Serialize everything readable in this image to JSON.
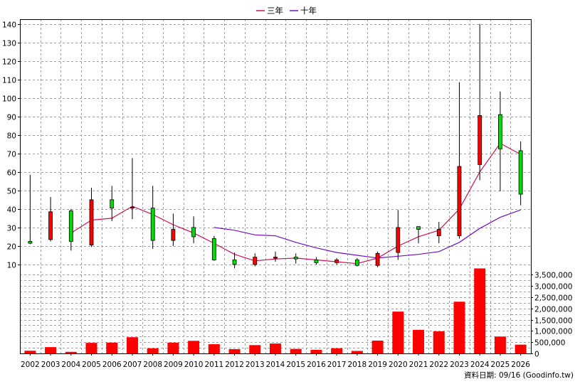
{
  "legend": [
    {
      "label": "三年",
      "color": "#d0105a"
    },
    {
      "label": "十年",
      "color": "#7010c8"
    }
  ],
  "footer": {
    "note": "資料日期: 09/16  (Goodinfo.tw)"
  },
  "colors": {
    "up": "#ff0000",
    "down": "#00dd00",
    "volume": "#ff0000",
    "grid": "#a0a0a0"
  },
  "chart_data": {
    "type": "candlestick",
    "categories": [
      "2002",
      "2003",
      "2004",
      "2005",
      "2006",
      "2007",
      "2008",
      "2009",
      "2010",
      "2011",
      "2012",
      "2013",
      "2014",
      "2015",
      "2016",
      "2017",
      "2018",
      "2019",
      "2020",
      "2021",
      "2022",
      "2023",
      "2024",
      "2025",
      "2026"
    ],
    "price_ylim": [
      5,
      141
    ],
    "price_ticks": [
      10,
      20,
      30,
      40,
      50,
      60,
      70,
      80,
      90,
      100,
      110,
      120,
      130,
      140
    ],
    "candles": [
      {
        "open": 22.5,
        "close": 21.5,
        "high": 58.5,
        "low": 21.0
      },
      {
        "open": 23.5,
        "close": 38.5,
        "high": 46.5,
        "low": 22.5
      },
      {
        "open": 39.0,
        "close": 22.5,
        "high": 40.0,
        "low": 17.5
      },
      {
        "open": 20.5,
        "close": 45.0,
        "high": 51.5,
        "low": 19.5
      },
      {
        "open": 45.0,
        "close": 40.5,
        "high": 52.5,
        "low": 33.5
      },
      {
        "open": 41.0,
        "close": 41.0,
        "high": 67.5,
        "low": 34.5
      },
      {
        "open": 40.5,
        "close": 23.0,
        "high": 52.5,
        "low": 18.5
      },
      {
        "open": 23.0,
        "close": 29.0,
        "high": 37.5,
        "low": 20.0
      },
      {
        "open": 30.0,
        "close": 25.0,
        "high": 36.0,
        "low": 21.5
      },
      {
        "open": 24.0,
        "close": 12.5,
        "high": 25.5,
        "low": 12.0
      },
      {
        "open": 12.5,
        "close": 10.0,
        "high": 16.5,
        "low": 8.0
      },
      {
        "open": 10.0,
        "close": 14.0,
        "high": 16.0,
        "low": 9.0
      },
      {
        "open": 13.5,
        "close": 14.0,
        "high": 17.0,
        "low": 11.5
      },
      {
        "open": 14.0,
        "close": 13.0,
        "high": 16.0,
        "low": 10.5
      },
      {
        "open": 12.5,
        "close": 11.0,
        "high": 14.0,
        "low": 10.0
      },
      {
        "open": 11.0,
        "close": 12.5,
        "high": 13.5,
        "low": 10.0
      },
      {
        "open": 12.5,
        "close": 9.5,
        "high": 13.5,
        "low": 9.0
      },
      {
        "open": 9.5,
        "close": 16.0,
        "high": 17.0,
        "low": 8.5
      },
      {
        "open": 16.5,
        "close": 30.0,
        "high": 39.5,
        "low": 12.5
      },
      {
        "open": 30.5,
        "close": 29.0,
        "high": 30.5,
        "low": 21.5
      },
      {
        "open": 25.5,
        "close": 29.0,
        "high": 33.0,
        "low": 21.5
      },
      {
        "open": 25.5,
        "close": 63.0,
        "high": 108.5,
        "low": 24.0
      },
      {
        "open": 64.0,
        "close": 90.5,
        "high": 140.0,
        "low": 55.5
      },
      {
        "open": 91.0,
        "close": 72.5,
        "high": 103.5,
        "low": 49.5
      },
      {
        "open": 71.5,
        "close": 48.0,
        "high": 76.5,
        "low": 42.0
      }
    ],
    "series": [
      {
        "name": "三年",
        "values": [
          null,
          null,
          27.0,
          34.0,
          35.0,
          41.5,
          37.0,
          31.5,
          27.0,
          21.5,
          15.5,
          12.0,
          13.0,
          13.5,
          12.5,
          11.5,
          10.5,
          13.5,
          20.0,
          25.0,
          28.5,
          40.0,
          60.0,
          75.5,
          69.5
        ]
      },
      {
        "name": "十年",
        "values": [
          null,
          null,
          null,
          null,
          null,
          null,
          null,
          null,
          null,
          30.0,
          28.5,
          26.0,
          25.5,
          22.0,
          19.0,
          16.5,
          15.0,
          13.5,
          14.5,
          15.5,
          17.0,
          22.0,
          29.5,
          35.5,
          39.5
        ]
      }
    ],
    "volume_ylim": [
      0,
      3700000
    ],
    "volume_ticks": [
      "0",
      "500,000",
      "1,000,000",
      "1,500,000",
      "2,000,000",
      "2,500,000",
      "3,000,000",
      "3,500,000"
    ],
    "volume": [
      120000,
      280000,
      70000,
      470000,
      480000,
      720000,
      230000,
      480000,
      560000,
      410000,
      190000,
      370000,
      440000,
      200000,
      160000,
      230000,
      110000,
      570000,
      1860000,
      1050000,
      980000,
      2300000,
      3780000,
      750000,
      390000
    ],
    "grid": true,
    "legend_position": "top-center"
  }
}
